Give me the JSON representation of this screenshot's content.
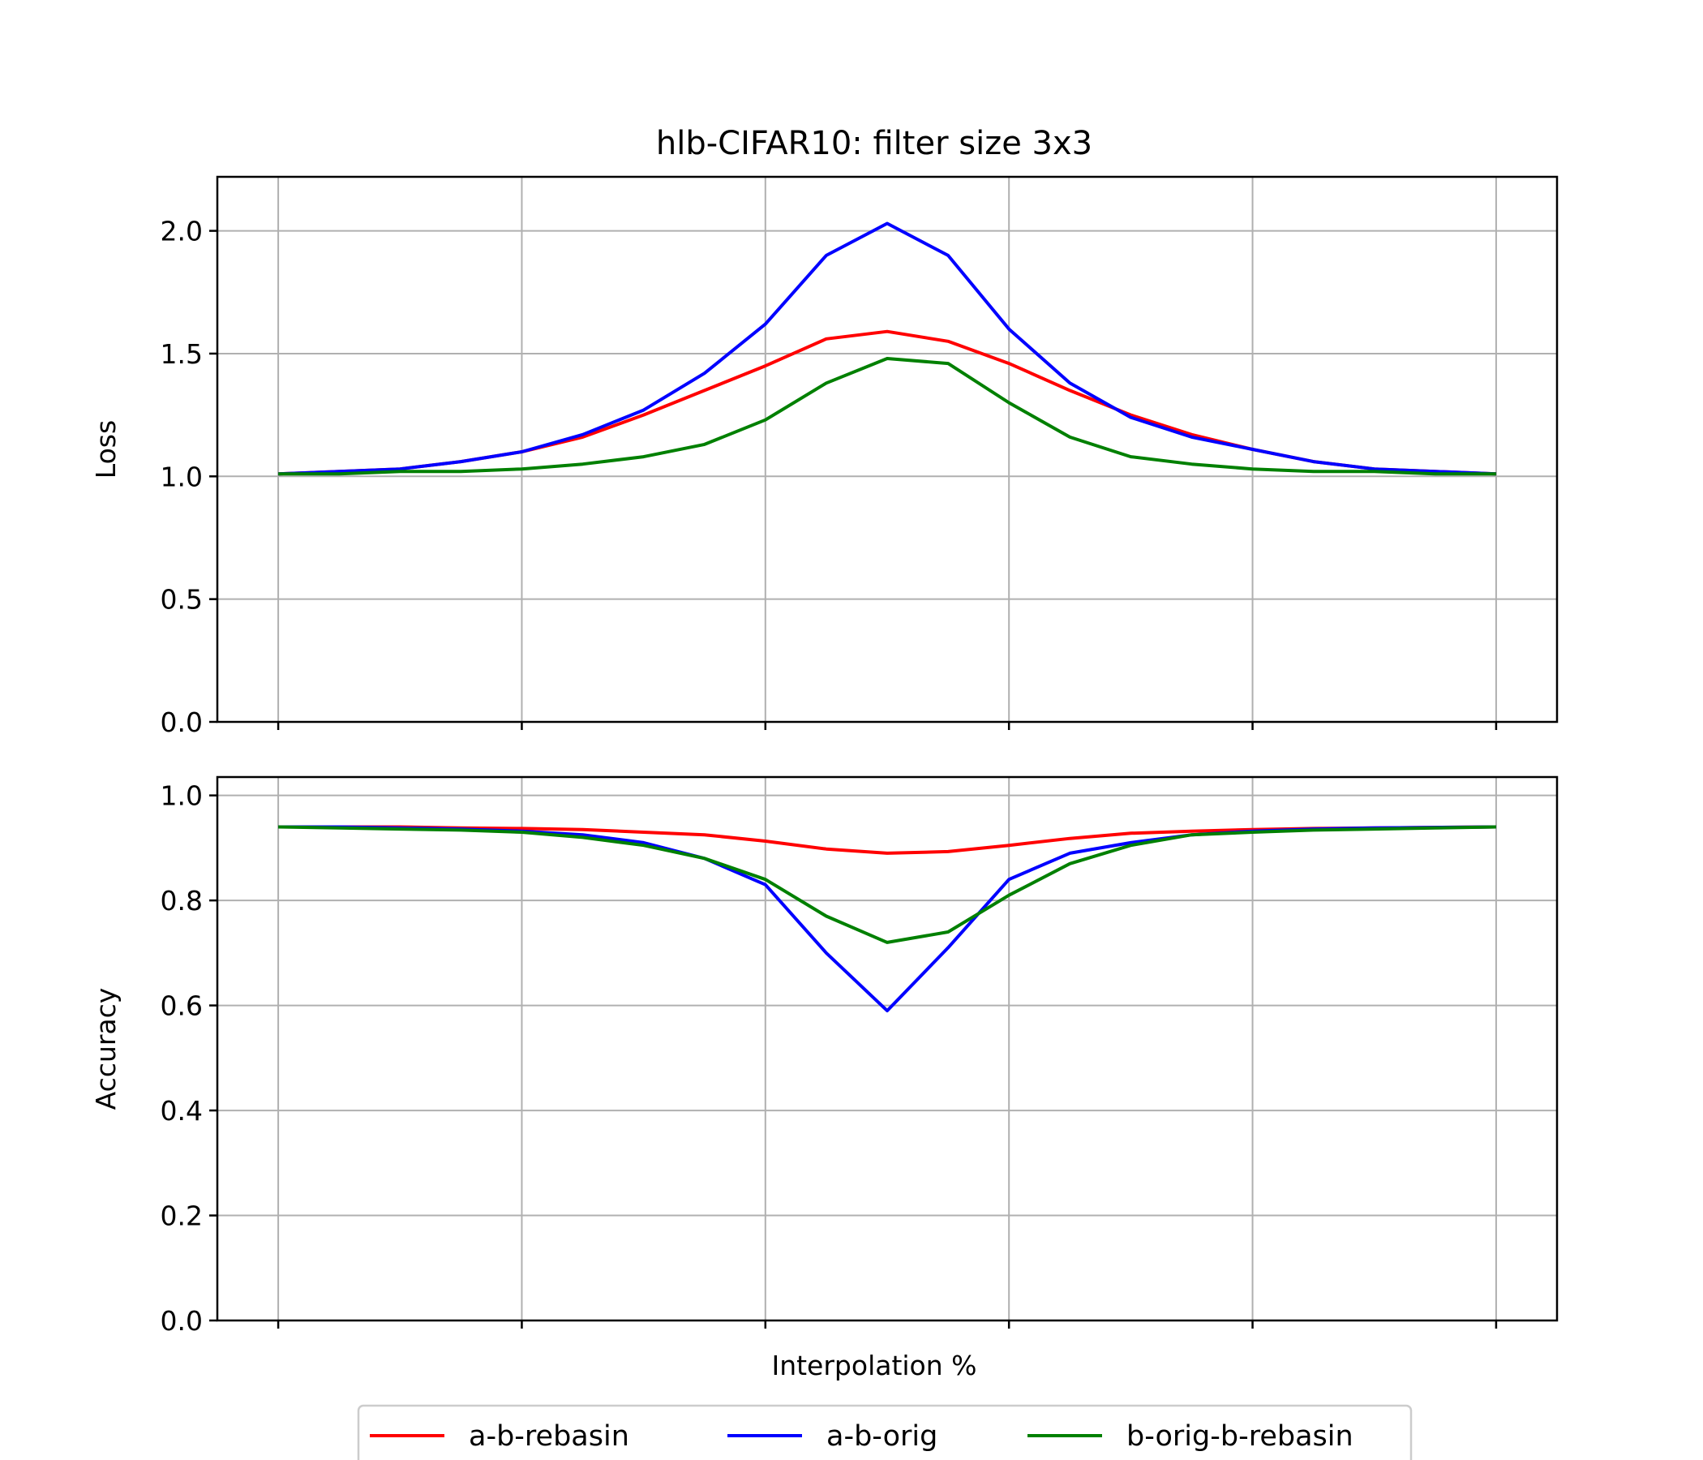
{
  "chart_data": {
    "type": "line",
    "title": "hlb-CIFAR10: filter size 3x3",
    "xlabel": "Interpolation %",
    "legend": {
      "placement": "bottom-center",
      "labels": [
        "a-b-rebasin",
        "a-b-orig",
        "b-orig-b-rebasin"
      ]
    },
    "grid": true,
    "x": [
      0,
      5,
      10,
      15,
      20,
      25,
      30,
      35,
      40,
      45,
      50,
      55,
      60,
      65,
      70,
      75,
      80,
      85,
      90,
      95,
      100
    ],
    "x_ticks": [
      0,
      20,
      40,
      60,
      80,
      100
    ],
    "x_tick_labels": [
      "",
      "",
      "",
      "",
      "",
      ""
    ],
    "xlim": [
      -5,
      105
    ],
    "panels": [
      {
        "ylabel": "Loss",
        "ylim": [
          0,
          2.22
        ],
        "yticks": [
          0.0,
          0.5,
          1.0,
          1.5,
          2.0
        ],
        "ytick_labels": [
          "0.0",
          "0.5",
          "1.0",
          "1.5",
          "2.0"
        ],
        "series": [
          {
            "name": "a-b-rebasin",
            "color": "#ff0000",
            "values": [
              1.01,
              1.02,
              1.03,
              1.06,
              1.1,
              1.16,
              1.25,
              1.35,
              1.45,
              1.56,
              1.59,
              1.55,
              1.46,
              1.35,
              1.25,
              1.17,
              1.11,
              1.06,
              1.03,
              1.02,
              1.01
            ]
          },
          {
            "name": "a-b-orig",
            "color": "#0000ff",
            "values": [
              1.01,
              1.02,
              1.03,
              1.06,
              1.1,
              1.17,
              1.27,
              1.42,
              1.62,
              1.9,
              2.03,
              1.9,
              1.6,
              1.38,
              1.24,
              1.16,
              1.11,
              1.06,
              1.03,
              1.02,
              1.01
            ]
          },
          {
            "name": "b-orig-b-rebasin",
            "color": "#008000",
            "values": [
              1.01,
              1.01,
              1.02,
              1.02,
              1.03,
              1.05,
              1.08,
              1.13,
              1.23,
              1.38,
              1.48,
              1.46,
              1.3,
              1.16,
              1.08,
              1.05,
              1.03,
              1.02,
              1.02,
              1.01,
              1.01
            ]
          }
        ]
      },
      {
        "ylabel": "Accuracy",
        "ylim": [
          0,
          1.035
        ],
        "yticks": [
          0.0,
          0.2,
          0.4,
          0.6,
          0.8,
          1.0
        ],
        "ytick_labels": [
          "0.0",
          "0.2",
          "0.4",
          "0.6",
          "0.8",
          "1.0"
        ],
        "series": [
          {
            "name": "a-b-rebasin",
            "color": "#ff0000",
            "values": [
              0.94,
              0.94,
              0.94,
              0.938,
              0.937,
              0.935,
              0.93,
              0.925,
              0.913,
              0.898,
              0.89,
              0.893,
              0.905,
              0.918,
              0.928,
              0.932,
              0.935,
              0.937,
              0.938,
              0.939,
              0.94
            ]
          },
          {
            "name": "a-b-orig",
            "color": "#0000ff",
            "values": [
              0.94,
              0.94,
              0.938,
              0.936,
              0.932,
              0.925,
              0.91,
              0.88,
              0.83,
              0.7,
              0.59,
              0.71,
              0.84,
              0.89,
              0.91,
              0.925,
              0.932,
              0.936,
              0.938,
              0.939,
              0.94
            ]
          },
          {
            "name": "b-orig-b-rebasin",
            "color": "#008000",
            "values": [
              0.94,
              0.938,
              0.936,
              0.934,
              0.93,
              0.92,
              0.905,
              0.88,
              0.84,
              0.77,
              0.72,
              0.74,
              0.81,
              0.87,
              0.905,
              0.925,
              0.93,
              0.934,
              0.936,
              0.938,
              0.94
            ]
          }
        ]
      }
    ]
  }
}
